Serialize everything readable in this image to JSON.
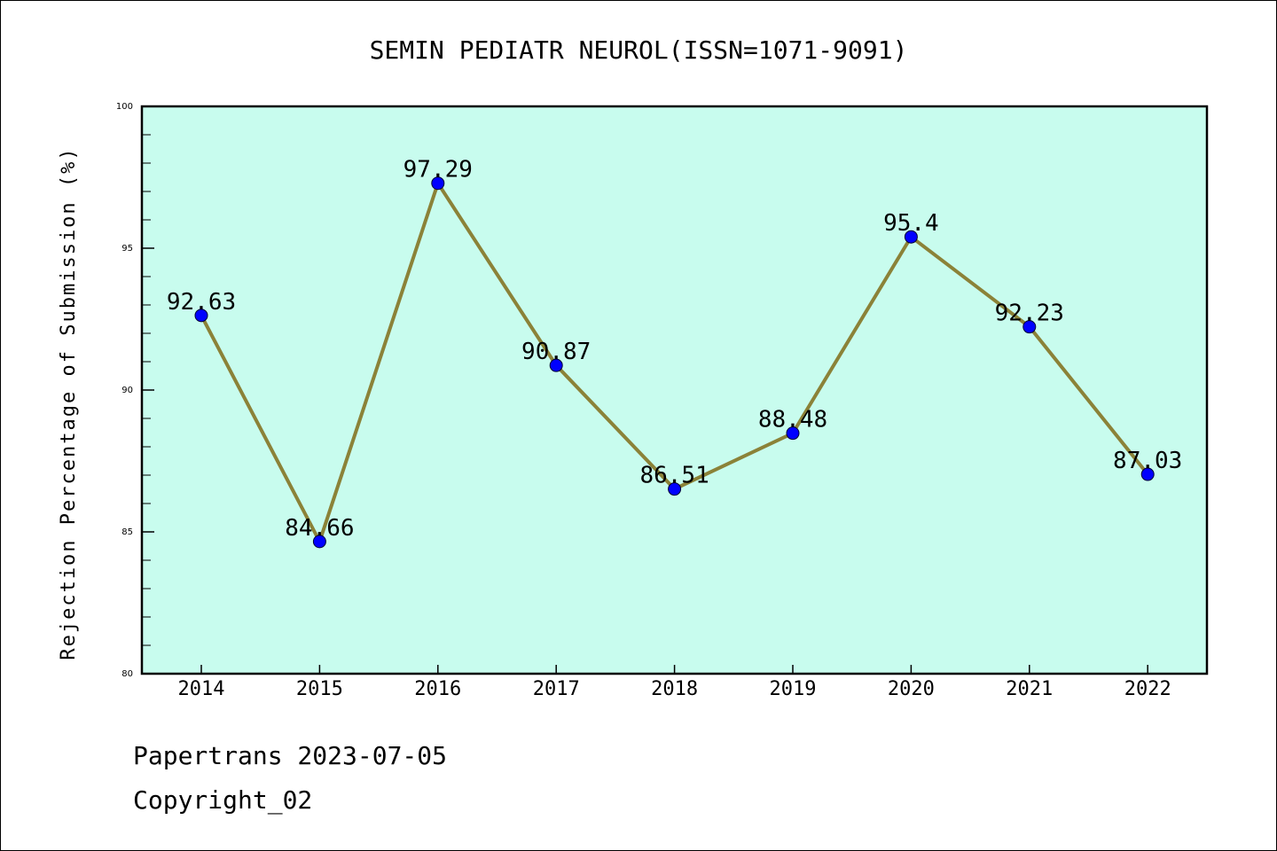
{
  "chart_data": {
    "type": "line",
    "title": "SEMIN PEDIATR NEUROL(ISSN=1071-9091)",
    "xlabel": "",
    "ylabel": "Rejection Percentage of Submission (%)",
    "categories": [
      "2014",
      "2015",
      "2016",
      "2017",
      "2018",
      "2019",
      "2020",
      "2021",
      "2022"
    ],
    "values": [
      92.63,
      84.66,
      97.29,
      90.87,
      86.51,
      88.48,
      95.4,
      92.23,
      87.03
    ],
    "data_labels": [
      "92.63",
      "84.66",
      "97.29",
      "90.87",
      "86.51",
      "88.48",
      "95.4",
      "92.23",
      "87.03"
    ],
    "ylim": [
      80,
      100
    ],
    "yticks": [
      80,
      85,
      90,
      95,
      100
    ],
    "grid": false,
    "colors": {
      "plot_background": "#c8fcee",
      "line": "#8b8238",
      "marker": "#0000ff"
    }
  },
  "footer": {
    "line1": "Papertrans 2023-07-05",
    "line2": "Copyright_02"
  }
}
